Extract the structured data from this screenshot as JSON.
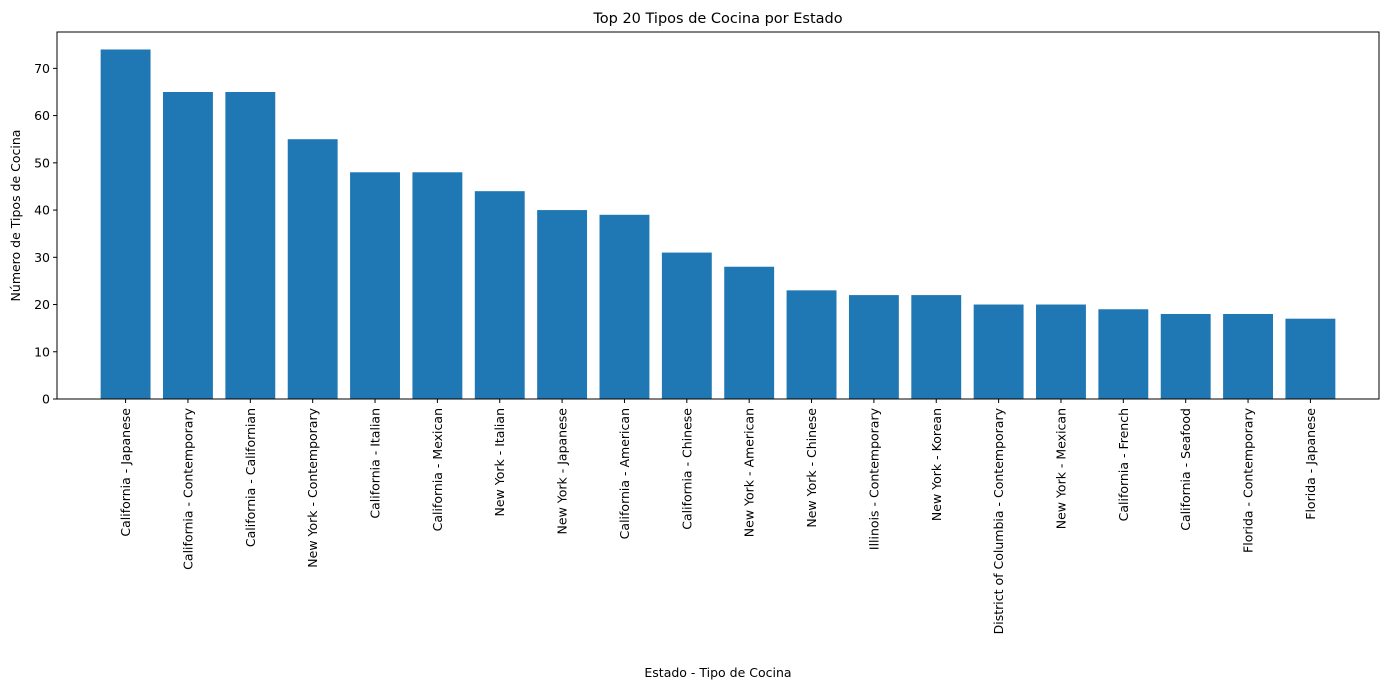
{
  "chart_data": {
    "type": "bar",
    "title": "Top 20 Tipos de Cocina por Estado",
    "xlabel": "Estado - Tipo de Cocina",
    "ylabel": "Número de Tipos de Cocina",
    "categories": [
      "California - Japanese",
      "California - Contemporary",
      "California - Californian",
      "New York - Contemporary",
      "California - Italian",
      "California - Mexican",
      "New York - Italian",
      "New York - Japanese",
      "California - American",
      "California - Chinese",
      "New York - American",
      "New York - Chinese",
      "Illinois - Contemporary",
      "New York - Korean",
      "District of Columbia - Contemporary",
      "New York - Mexican",
      "California - French",
      "California - Seafood",
      "Florida - Contemporary",
      "Florida - Japanese"
    ],
    "values": [
      74,
      65,
      65,
      55,
      48,
      48,
      44,
      40,
      39,
      31,
      28,
      23,
      22,
      22,
      20,
      20,
      19,
      18,
      18,
      17
    ],
    "ylim": [
      0,
      77.7
    ],
    "yticks": [
      0,
      10,
      20,
      30,
      40,
      50,
      60,
      70
    ],
    "bar_color": "#1f77b4",
    "grid": false,
    "legend": "none"
  }
}
